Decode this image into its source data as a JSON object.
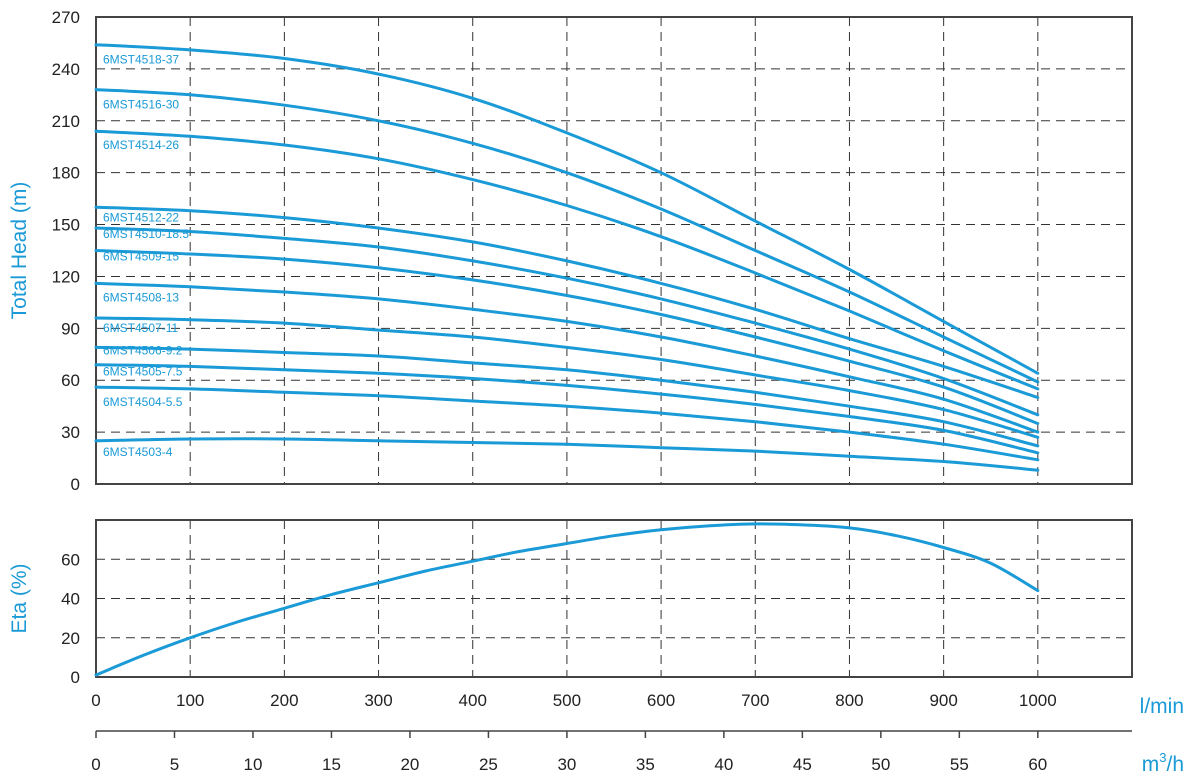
{
  "colors": {
    "accent": "#1a9ad6",
    "frame": "#444444",
    "grid": "#333333",
    "text": "#222222"
  },
  "chart_data": [
    {
      "type": "line",
      "ylabel": "Total Head (m)",
      "xlabel": "",
      "xlim": [
        0,
        1100
      ],
      "ylim": [
        0,
        270
      ],
      "x_ticks": [
        0,
        100,
        200,
        300,
        400,
        500,
        600,
        700,
        800,
        900,
        1000
      ],
      "y_ticks": [
        0,
        30,
        60,
        90,
        120,
        150,
        180,
        210,
        240,
        270
      ],
      "grid": true,
      "x": [
        0,
        100,
        200,
        300,
        400,
        500,
        600,
        700,
        800,
        900,
        1000
      ],
      "series": [
        {
          "name": "6MST4518-37",
          "values": [
            254,
            251,
            246,
            237,
            223,
            203,
            180,
            152,
            124,
            94,
            64
          ]
        },
        {
          "name": "6MST4516-30",
          "values": [
            228,
            225,
            219,
            210,
            197,
            180,
            159,
            135,
            111,
            85,
            59
          ]
        },
        {
          "name": "6MST4514-26",
          "values": [
            204,
            201,
            196,
            188,
            176,
            161,
            143,
            122,
            100,
            77,
            55
          ]
        },
        {
          "name": "6MST4512-22",
          "values": [
            160,
            158,
            154,
            148,
            140,
            129,
            116,
            101,
            84,
            68,
            50
          ]
        },
        {
          "name": "6MST4510-18.5",
          "values": [
            148,
            146,
            142,
            137,
            129,
            119,
            107,
            93,
            78,
            61,
            40
          ]
        },
        {
          "name": "6MST4509-15",
          "values": [
            135,
            133,
            130,
            125,
            118,
            109,
            98,
            85,
            71,
            56,
            35
          ]
        },
        {
          "name": "6MST4508-13",
          "values": [
            116,
            114,
            111,
            107,
            101,
            94,
            85,
            74,
            62,
            49,
            30
          ]
        },
        {
          "name": "6MST4507-11",
          "values": [
            96,
            95,
            93,
            89,
            85,
            79,
            72,
            63,
            54,
            43,
            27
          ]
        },
        {
          "name": "6MST4506-9.2",
          "values": [
            79,
            78,
            76,
            74,
            70,
            66,
            60,
            53,
            45,
            36,
            22
          ]
        },
        {
          "name": "6MST4505-7.5",
          "values": [
            69,
            68,
            66,
            64,
            61,
            57,
            52,
            46,
            39,
            31,
            18
          ]
        },
        {
          "name": "6MST4504-5.5",
          "values": [
            56,
            55,
            53,
            51,
            48,
            45,
            41,
            36,
            30,
            23,
            14
          ]
        },
        {
          "name": "6MST4503-4",
          "values": [
            25,
            26,
            26,
            25,
            24,
            23,
            21,
            19,
            16,
            13,
            8
          ]
        }
      ]
    },
    {
      "type": "line",
      "ylabel": "Eta (%)",
      "xlabel": "l/min",
      "secondary_xlabel": "m3/h",
      "xlim": [
        0,
        1100
      ],
      "ylim": [
        0,
        80
      ],
      "x_ticks": [
        0,
        100,
        200,
        300,
        400,
        500,
        600,
        700,
        800,
        900,
        1000
      ],
      "y_ticks": [
        0,
        20,
        40,
        60
      ],
      "secondary_x_ticks": [
        0,
        5,
        10,
        15,
        20,
        25,
        30,
        35,
        40,
        45,
        50,
        55,
        60
      ],
      "grid": true,
      "series": [
        {
          "x": [
            0,
            50,
            100,
            150,
            200,
            250,
            300,
            350,
            400,
            450,
            500,
            550,
            600,
            650,
            700,
            750,
            800,
            850,
            900,
            950,
            1000
          ],
          "values": [
            1,
            11,
            20,
            28,
            35,
            42,
            48,
            54,
            59,
            64,
            68,
            72,
            75,
            77,
            78,
            77.5,
            76,
            72,
            66,
            58,
            44
          ]
        }
      ]
    }
  ]
}
